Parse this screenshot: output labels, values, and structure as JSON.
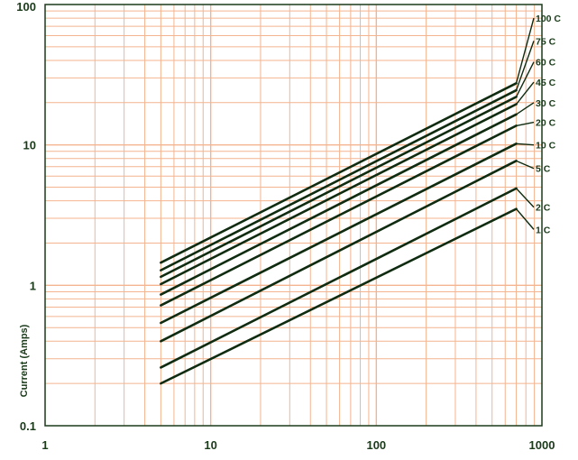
{
  "chart_data": {
    "type": "line",
    "title": "",
    "xlabel": "",
    "ylabel": "Current (Amps)",
    "x_scale": "log",
    "y_scale": "log",
    "xlim": [
      1,
      1000
    ],
    "ylim": [
      0.1,
      100
    ],
    "x_ticks": [
      "1",
      "10",
      "100",
      "1000"
    ],
    "y_ticks": [
      "0.1",
      "1",
      "10",
      "100"
    ],
    "grid": true,
    "series": [
      {
        "name": "100 C",
        "x": [
          5,
          700
        ],
        "y": [
          1.45,
          27.5
        ],
        "label_y": 80
      },
      {
        "name": "75 C",
        "x": [
          5,
          700
        ],
        "y": [
          1.28,
          24.5
        ],
        "label_y": 55
      },
      {
        "name": "60 C",
        "x": [
          5,
          700
        ],
        "y": [
          1.15,
          22.0
        ],
        "label_y": 39
      },
      {
        "name": "45 C",
        "x": [
          5,
          700
        ],
        "y": [
          1.02,
          19.5
        ],
        "label_y": 28
      },
      {
        "name": "30 C",
        "x": [
          5,
          700
        ],
        "y": [
          0.86,
          16.5
        ],
        "label_y": 20
      },
      {
        "name": "20 C",
        "x": [
          5,
          700
        ],
        "y": [
          0.72,
          13.7
        ],
        "label_y": 14.5
      },
      {
        "name": "10 C",
        "x": [
          5,
          700
        ],
        "y": [
          0.54,
          10.2
        ],
        "label_y": 10
      },
      {
        "name": "5 C",
        "x": [
          5,
          700
        ],
        "y": [
          0.4,
          7.7
        ],
        "label_y": 6.8
      },
      {
        "name": "2 C",
        "x": [
          5,
          700
        ],
        "y": [
          0.26,
          4.9
        ],
        "label_y": 3.6
      },
      {
        "name": "1 C",
        "x": [
          5,
          700
        ],
        "y": [
          0.2,
          3.5
        ],
        "label_y": 2.5
      }
    ],
    "colors": {
      "grid": "#f4b48f",
      "line": "#0f2b10",
      "axis": "#1a3a1a",
      "label": "#1a3a1a"
    }
  }
}
